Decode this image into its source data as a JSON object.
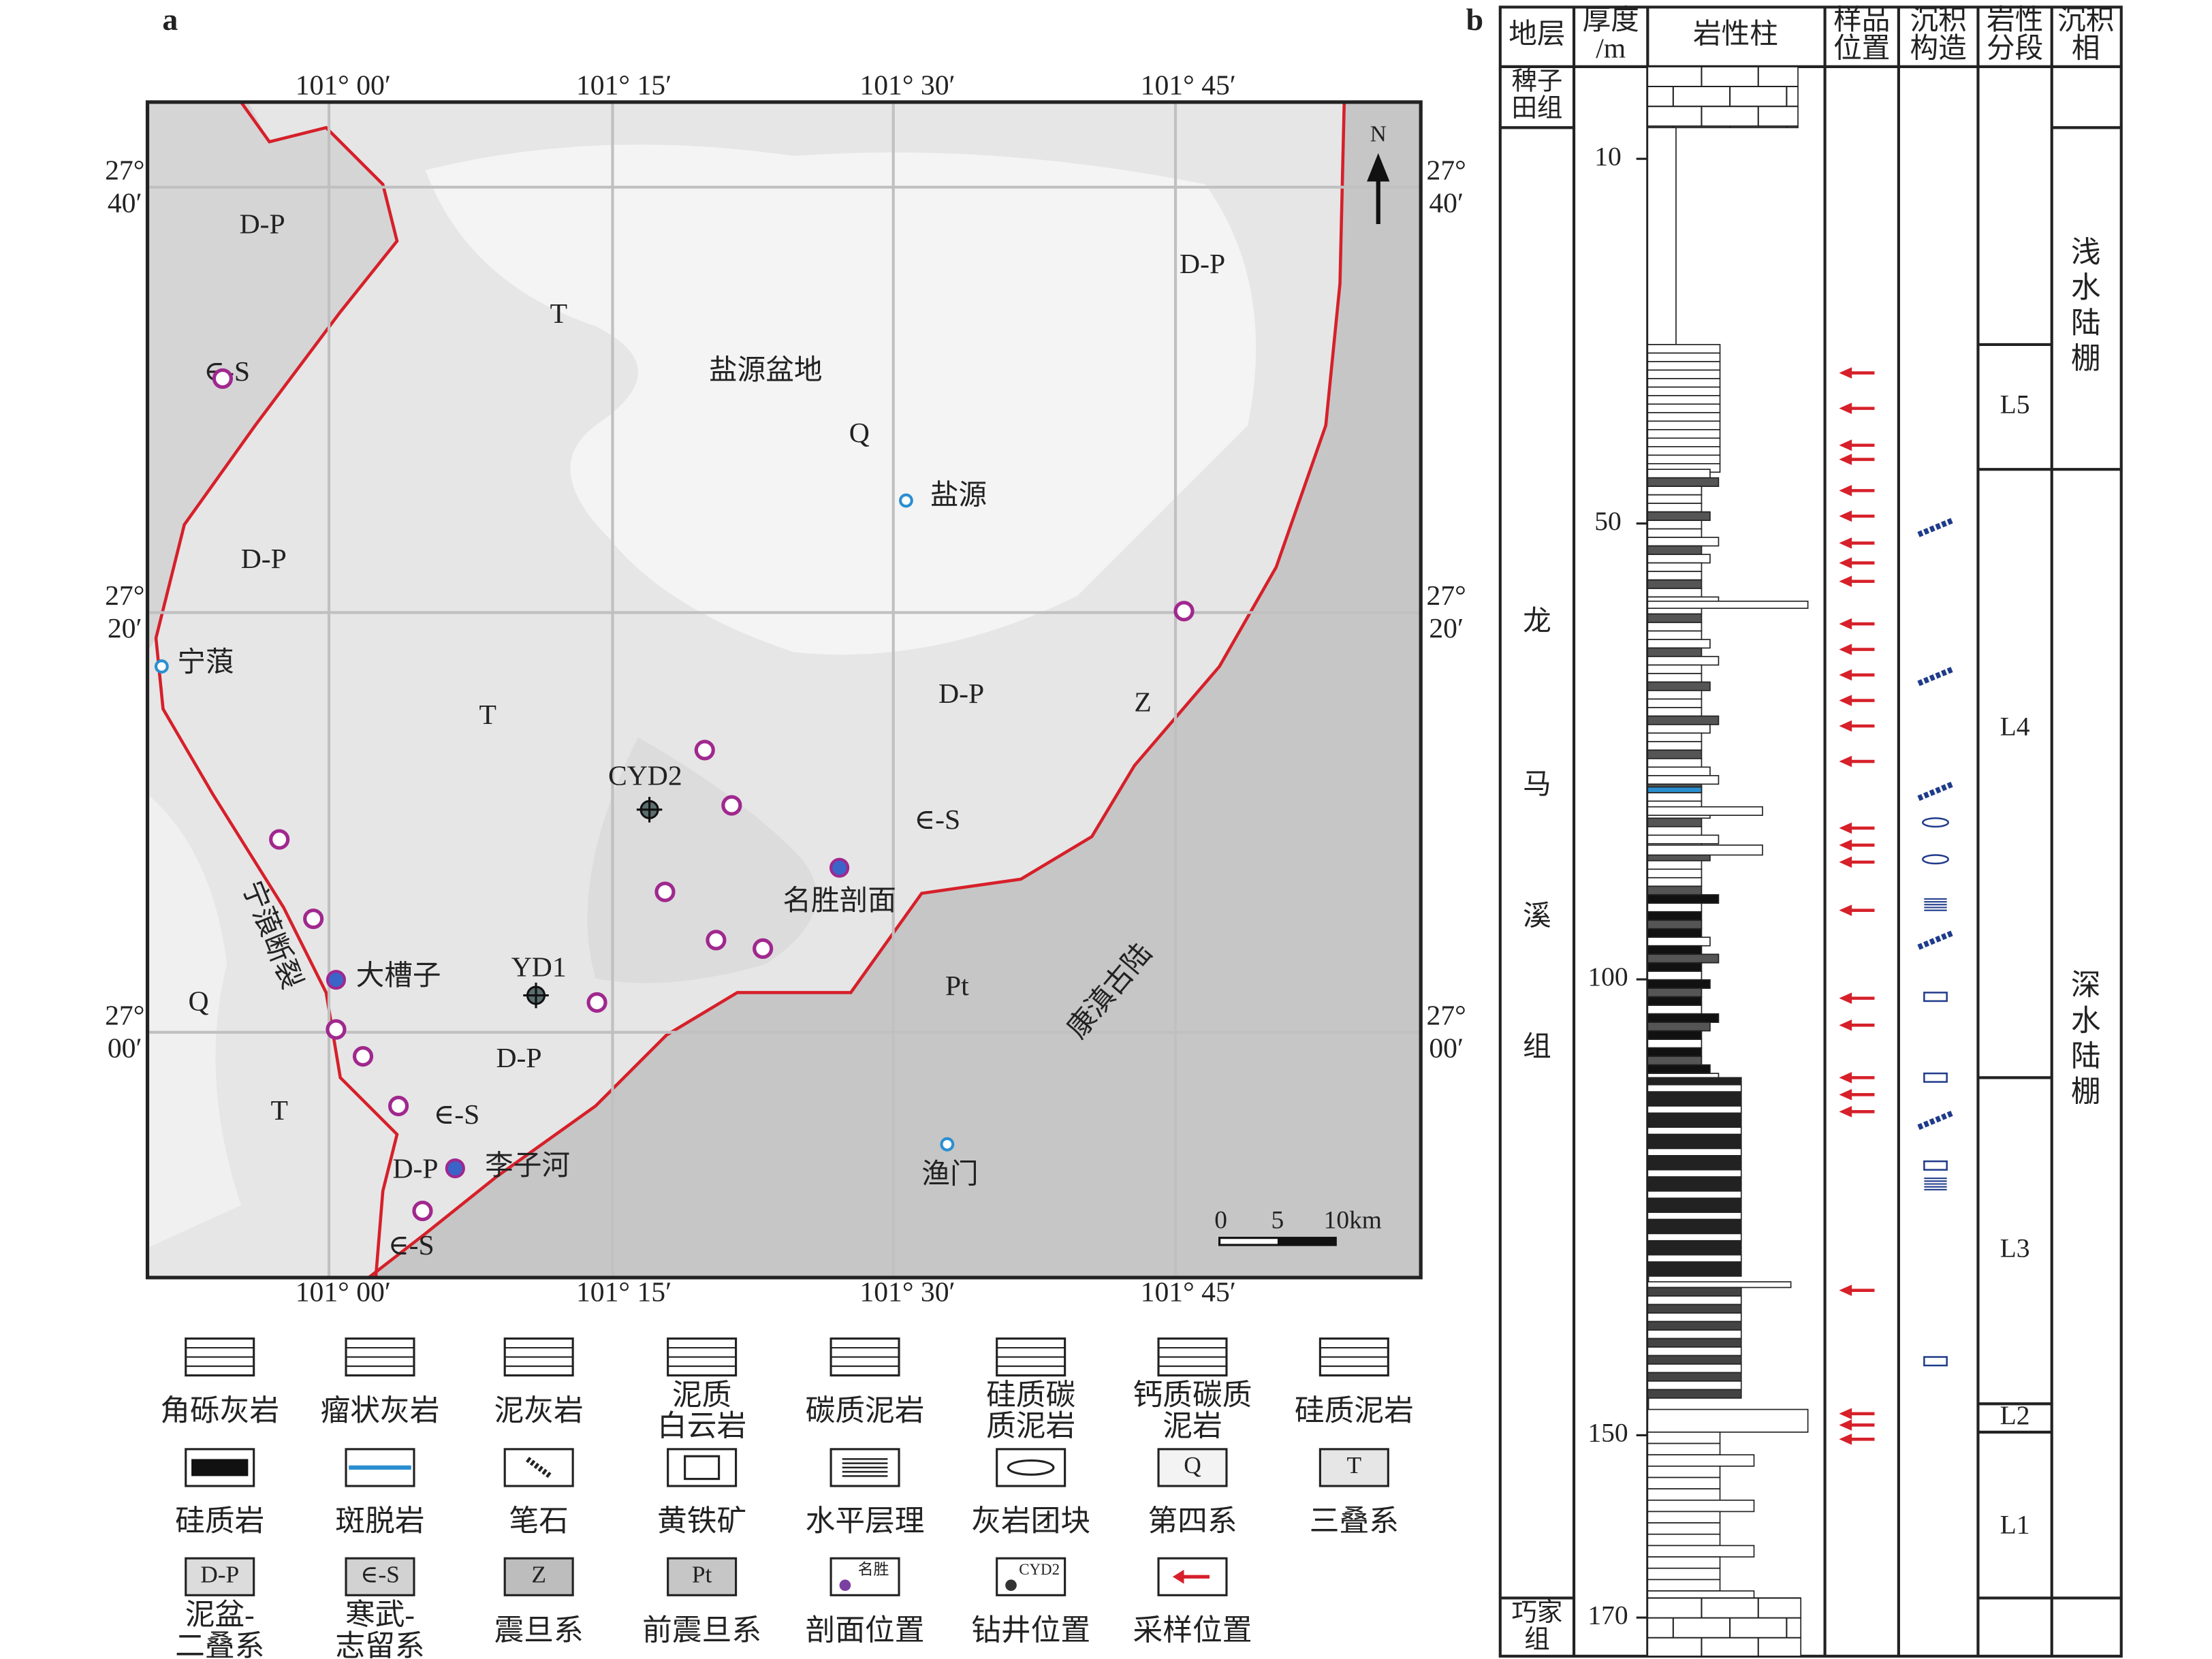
{
  "panel_a": {
    "label": "a",
    "longitude_labels": [
      "101° 00′",
      "101° 15′",
      "101° 30′",
      "101° 45′"
    ],
    "latitude_labels": [
      [
        "27°",
        "40′"
      ],
      [
        "27°",
        "20′"
      ],
      [
        "27°",
        "00′"
      ]
    ],
    "north": "N",
    "scale_bar": [
      "0",
      "5",
      "10km"
    ],
    "map_labels": [
      "D-P",
      "T",
      "盐源盆地",
      "Q",
      "D-P",
      "∈-S",
      "D-P",
      "T",
      "D-P",
      "Z",
      "∈-S",
      "Pt",
      "康滇古陆",
      "Q",
      "D-P",
      "T",
      "∈-S",
      "D-P",
      "∈-S",
      "宁蒗断裂"
    ],
    "places": [
      "盐源",
      "宁蒗",
      "渔门",
      "名胜剖面",
      "大槽子",
      "李子河",
      "CYD2",
      "YD1"
    ],
    "legend": [
      {
        "label": [
          "角砾灰岩"
        ]
      },
      {
        "label": [
          "瘤状灰岩"
        ]
      },
      {
        "label": [
          "泥灰岩"
        ]
      },
      {
        "label": [
          "泥质",
          "白云岩"
        ]
      },
      {
        "label": [
          "碳质泥岩"
        ]
      },
      {
        "label": [
          "硅质碳",
          "质泥岩"
        ]
      },
      {
        "label": [
          "钙质碳质",
          "泥岩"
        ]
      },
      {
        "label": [
          "硅质泥岩"
        ]
      },
      {
        "label": [
          "硅质岩"
        ]
      },
      {
        "label": [
          "斑脱岩"
        ]
      },
      {
        "label": [
          "笔石"
        ]
      },
      {
        "label": [
          "黄铁矿"
        ]
      },
      {
        "label": [
          "水平层理"
        ]
      },
      {
        "label": [
          "灰岩团块"
        ]
      },
      {
        "label": [
          "第四系"
        ],
        "symbol_text": "Q"
      },
      {
        "label": [
          "三叠系"
        ],
        "symbol_text": "T"
      },
      {
        "label": [
          "泥盆-",
          "二叠系"
        ],
        "symbol_text": "D-P"
      },
      {
        "label": [
          "寒武-",
          "志留系"
        ],
        "symbol_text": "∈-S"
      },
      {
        "label": [
          "震旦系"
        ],
        "symbol_text": "Z"
      },
      {
        "label": [
          "前震旦系"
        ],
        "symbol_text": "Pt"
      },
      {
        "label": [
          "剖面位置"
        ],
        "symbol_text": "名胜"
      },
      {
        "label": [
          "钻井位置"
        ],
        "symbol_text": "CYD2"
      },
      {
        "label": [
          "采样位置"
        ]
      }
    ]
  },
  "panel_b": {
    "label": "b",
    "headers": [
      [
        "地层"
      ],
      [
        "厚度",
        "/m"
      ],
      [
        "岩性柱"
      ],
      [
        "样品",
        "位置"
      ],
      [
        "沉积",
        "构造"
      ],
      [
        "岩性",
        "分段"
      ],
      [
        "沉积",
        "相"
      ]
    ],
    "formations": [
      [
        "稗子",
        "田组"
      ],
      [
        "龙",
        "马",
        "溪",
        "组"
      ],
      [
        "巧家",
        "组"
      ]
    ],
    "depth_ticks": [
      10,
      50,
      100,
      150,
      170
    ],
    "units": [
      "L5",
      "L4",
      "L3",
      "L2",
      "L1"
    ],
    "facies": [
      [
        "浅",
        "水",
        "陆",
        "棚"
      ],
      [
        "深",
        "水",
        "陆",
        "棚"
      ]
    ]
  }
}
